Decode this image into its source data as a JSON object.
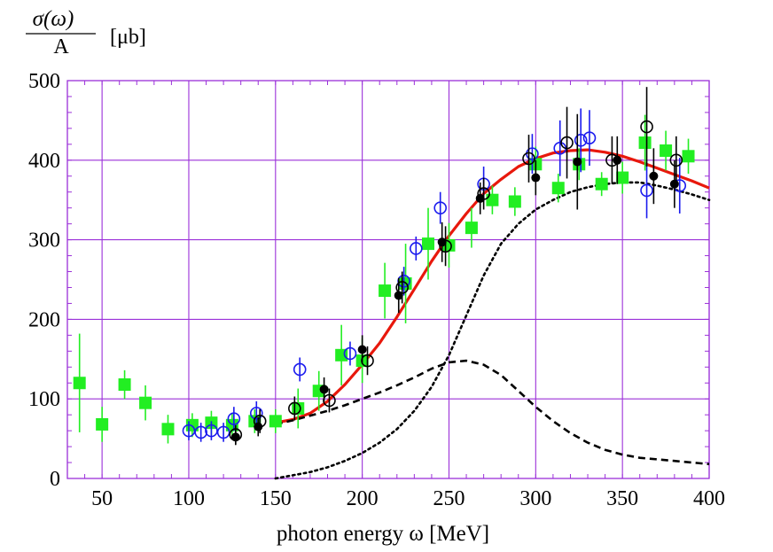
{
  "chart_data": {
    "type": "scatter",
    "xlabel": "photon energy ω  [MeV]",
    "ylabel": {
      "numerator": "σ(ω)",
      "denominator": "A",
      "unit": "[μb]"
    },
    "xlim": [
      30,
      400
    ],
    "ylim": [
      0,
      500
    ],
    "x_major_ticks": [
      50,
      100,
      150,
      200,
      250,
      300,
      350,
      400
    ],
    "x_minor_step": 10,
    "y_major_ticks": [
      0,
      100,
      200,
      300,
      400,
      500
    ],
    "y_minor_step": 20,
    "grid": true,
    "colors": {
      "grid": "#9b30d9",
      "frame": "#9b30d9",
      "green": "#22ee22",
      "blue": "#1a1aee",
      "black": "#000000",
      "red": "#e8180c"
    },
    "series": [
      {
        "name": "green-squares",
        "marker": "filled-square",
        "color": "#22ee22",
        "points": [
          {
            "x": 37,
            "y": 120,
            "err": 62
          },
          {
            "x": 50,
            "y": 68,
            "err": 22
          },
          {
            "x": 63,
            "y": 118,
            "err": 18
          },
          {
            "x": 75,
            "y": 95,
            "err": 22
          },
          {
            "x": 88,
            "y": 62,
            "err": 18
          },
          {
            "x": 102,
            "y": 67,
            "err": 15
          },
          {
            "x": 113,
            "y": 70,
            "err": 15
          },
          {
            "x": 125,
            "y": 67,
            "err": 15
          },
          {
            "x": 138,
            "y": 72,
            "err": 15
          },
          {
            "x": 150,
            "y": 72,
            "err": 15
          },
          {
            "x": 163,
            "y": 88,
            "err": 25
          },
          {
            "x": 175,
            "y": 110,
            "err": 25
          },
          {
            "x": 188,
            "y": 155,
            "err": 38
          },
          {
            "x": 200,
            "y": 148,
            "err": 28
          },
          {
            "x": 213,
            "y": 236,
            "err": 35
          },
          {
            "x": 225,
            "y": 245,
            "err": 50
          },
          {
            "x": 238,
            "y": 295,
            "err": 45
          },
          {
            "x": 250,
            "y": 293,
            "err": 28
          },
          {
            "x": 263,
            "y": 315,
            "err": 25
          },
          {
            "x": 275,
            "y": 350,
            "err": 18
          },
          {
            "x": 288,
            "y": 348,
            "err": 18
          },
          {
            "x": 300,
            "y": 395,
            "err": 22
          },
          {
            "x": 313,
            "y": 365,
            "err": 18
          },
          {
            "x": 325,
            "y": 395,
            "err": 20
          },
          {
            "x": 338,
            "y": 370,
            "err": 15
          },
          {
            "x": 350,
            "y": 378,
            "err": 20
          },
          {
            "x": 363,
            "y": 422,
            "err": 35
          },
          {
            "x": 375,
            "y": 412,
            "err": 25
          },
          {
            "x": 388,
            "y": 405,
            "err": 22
          }
        ]
      },
      {
        "name": "blue-open-circles",
        "marker": "open-circle",
        "color": "#1a1aee",
        "points": [
          {
            "x": 100,
            "y": 60,
            "err": 12
          },
          {
            "x": 107,
            "y": 58,
            "err": 12
          },
          {
            "x": 113,
            "y": 60,
            "err": 12
          },
          {
            "x": 120,
            "y": 58,
            "err": 12
          },
          {
            "x": 126,
            "y": 75,
            "err": 15
          },
          {
            "x": 139,
            "y": 82,
            "err": 15
          },
          {
            "x": 164,
            "y": 137,
            "err": 15
          },
          {
            "x": 193,
            "y": 157,
            "err": 15
          },
          {
            "x": 224,
            "y": 248,
            "err": 18
          },
          {
            "x": 231,
            "y": 289,
            "err": 15
          },
          {
            "x": 245,
            "y": 340,
            "err": 20
          },
          {
            "x": 270,
            "y": 370,
            "err": 22
          },
          {
            "x": 298,
            "y": 408,
            "err": 25
          },
          {
            "x": 314,
            "y": 415,
            "err": 35
          },
          {
            "x": 326,
            "y": 425,
            "err": 40
          },
          {
            "x": 331,
            "y": 428,
            "err": 35
          },
          {
            "x": 364,
            "y": 362,
            "err": 35
          },
          {
            "x": 383,
            "y": 368,
            "err": 35
          }
        ]
      },
      {
        "name": "black-open-circles",
        "marker": "open-circle",
        "color": "#000000",
        "points": [
          {
            "x": 127,
            "y": 55,
            "err": 12
          },
          {
            "x": 141,
            "y": 72,
            "err": 15
          },
          {
            "x": 161,
            "y": 88,
            "err": 15
          },
          {
            "x": 181,
            "y": 98,
            "err": 15
          },
          {
            "x": 203,
            "y": 148,
            "err": 18
          },
          {
            "x": 223,
            "y": 240,
            "err": 20
          },
          {
            "x": 248,
            "y": 292,
            "err": 25
          },
          {
            "x": 270,
            "y": 358,
            "err": 20
          },
          {
            "x": 296,
            "y": 402,
            "err": 30
          },
          {
            "x": 318,
            "y": 422,
            "err": 45
          },
          {
            "x": 344,
            "y": 400,
            "err": 30
          },
          {
            "x": 364,
            "y": 442,
            "err": 50
          },
          {
            "x": 381,
            "y": 400,
            "err": 30
          }
        ]
      },
      {
        "name": "black-filled-circles",
        "marker": "filled-circle",
        "color": "#000000",
        "points": [
          {
            "x": 127,
            "y": 52,
            "err": 10
          },
          {
            "x": 140,
            "y": 65,
            "err": 12
          },
          {
            "x": 178,
            "y": 112,
            "err": 15
          },
          {
            "x": 200,
            "y": 162,
            "err": 18
          },
          {
            "x": 221,
            "y": 230,
            "err": 22
          },
          {
            "x": 246,
            "y": 297,
            "err": 25
          },
          {
            "x": 268,
            "y": 352,
            "err": 20
          },
          {
            "x": 300,
            "y": 378,
            "err": 22
          },
          {
            "x": 324,
            "y": 398,
            "err": 60
          },
          {
            "x": 347,
            "y": 400,
            "err": 30
          },
          {
            "x": 368,
            "y": 380,
            "err": 35
          },
          {
            "x": 380,
            "y": 370,
            "err": 30
          }
        ]
      }
    ],
    "curves": [
      {
        "name": "total-model",
        "style": "solid",
        "color": "#e8180c",
        "x": [
          150,
          160,
          170,
          180,
          190,
          200,
          210,
          220,
          230,
          240,
          250,
          260,
          270,
          280,
          290,
          300,
          310,
          320,
          330,
          340,
          350,
          360,
          370,
          380,
          390,
          400
        ],
        "y": [
          70,
          74,
          82,
          97,
          118,
          143,
          170,
          203,
          238,
          273,
          305,
          333,
          358,
          376,
          392,
          402,
          409,
          412,
          413,
          410,
          405,
          398,
          390,
          382,
          374,
          365
        ]
      },
      {
        "name": "background-component",
        "style": "dashed",
        "color": "#000000",
        "x": [
          150,
          160,
          170,
          180,
          190,
          200,
          210,
          220,
          230,
          240,
          250,
          260,
          270,
          280,
          290,
          300,
          310,
          320,
          330,
          340,
          350,
          360,
          370,
          380,
          390,
          400
        ],
        "y": [
          68,
          73,
          79,
          85,
          92,
          100,
          108,
          117,
          127,
          138,
          146,
          148,
          143,
          130,
          110,
          90,
          72,
          57,
          45,
          36,
          30,
          26,
          24,
          22,
          20,
          18
        ]
      },
      {
        "name": "resonance-component",
        "style": "dotted",
        "color": "#000000",
        "x": [
          150,
          160,
          170,
          180,
          190,
          200,
          210,
          220,
          230,
          240,
          250,
          260,
          270,
          280,
          290,
          300,
          310,
          320,
          330,
          340,
          350,
          360,
          370,
          380,
          390,
          400
        ],
        "y": [
          0,
          4,
          8,
          14,
          22,
          32,
          45,
          62,
          85,
          115,
          155,
          205,
          255,
          295,
          320,
          338,
          350,
          360,
          366,
          370,
          372,
          372,
          368,
          363,
          357,
          350
        ]
      }
    ]
  }
}
